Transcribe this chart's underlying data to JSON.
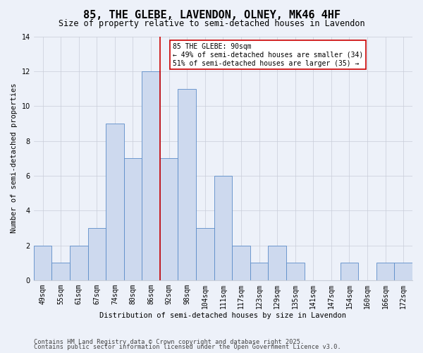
{
  "title": "85, THE GLEBE, LAVENDON, OLNEY, MK46 4HF",
  "subtitle": "Size of property relative to semi-detached houses in Lavendon",
  "xlabel": "Distribution of semi-detached houses by size in Lavendon",
  "ylabel": "Number of semi-detached properties",
  "categories": [
    "49sqm",
    "55sqm",
    "61sqm",
    "67sqm",
    "74sqm",
    "80sqm",
    "86sqm",
    "92sqm",
    "98sqm",
    "104sqm",
    "111sqm",
    "117sqm",
    "123sqm",
    "129sqm",
    "135sqm",
    "141sqm",
    "147sqm",
    "154sqm",
    "160sqm",
    "166sqm",
    "172sqm"
  ],
  "values": [
    2,
    1,
    2,
    3,
    9,
    7,
    12,
    7,
    11,
    3,
    6,
    2,
    1,
    2,
    1,
    0,
    0,
    1,
    0,
    1,
    1
  ],
  "highlight_index": 6,
  "bar_color": "#cdd9ee",
  "bar_edge_color": "#5b8cc8",
  "highlight_line_color": "#cc0000",
  "annotation_text": "85 THE GLEBE: 90sqm\n← 49% of semi-detached houses are smaller (34)\n51% of semi-detached houses are larger (35) →",
  "annotation_box_color": "#ffffff",
  "annotation_box_edge": "#cc0000",
  "ylim": [
    0,
    14
  ],
  "yticks": [
    0,
    2,
    4,
    6,
    8,
    10,
    12,
    14
  ],
  "bg_color": "#edf1f9",
  "footer1": "Contains HM Land Registry data © Crown copyright and database right 2025.",
  "footer2": "Contains public sector information licensed under the Open Government Licence v3.0.",
  "title_fontsize": 11,
  "subtitle_fontsize": 8.5,
  "axis_label_fontsize": 7.5,
  "tick_fontsize": 7,
  "annotation_fontsize": 7,
  "footer_fontsize": 6.2
}
